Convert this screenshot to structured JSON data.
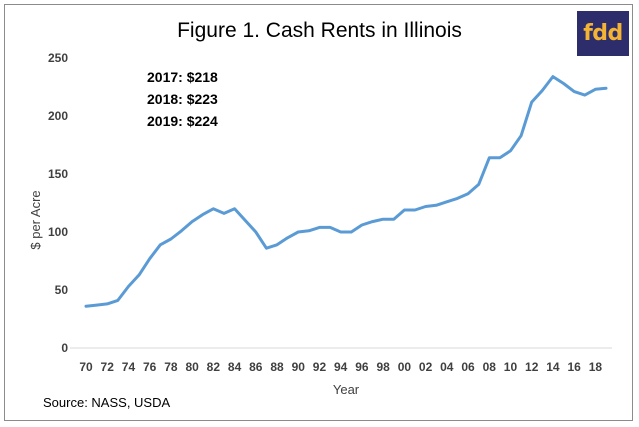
{
  "chart_data": {
    "type": "line",
    "title": "Figure 1.  Cash Rents in Illinois",
    "xlabel": "Year",
    "ylabel": "$ per Acre",
    "ylim": [
      0,
      250
    ],
    "xlim": [
      1970,
      2019
    ],
    "y_ticks": [
      0,
      50,
      100,
      150,
      200,
      250
    ],
    "x_ticks": [
      {
        "year": 1970,
        "label": "70"
      },
      {
        "year": 1972,
        "label": "72"
      },
      {
        "year": 1974,
        "label": "74"
      },
      {
        "year": 1976,
        "label": "76"
      },
      {
        "year": 1978,
        "label": "78"
      },
      {
        "year": 1980,
        "label": "80"
      },
      {
        "year": 1982,
        "label": "82"
      },
      {
        "year": 1984,
        "label": "84"
      },
      {
        "year": 1986,
        "label": "86"
      },
      {
        "year": 1988,
        "label": "88"
      },
      {
        "year": 1990,
        "label": "90"
      },
      {
        "year": 1992,
        "label": "92"
      },
      {
        "year": 1994,
        "label": "94"
      },
      {
        "year": 1996,
        "label": "96"
      },
      {
        "year": 1998,
        "label": "98"
      },
      {
        "year": 2000,
        "label": "00"
      },
      {
        "year": 2002,
        "label": "02"
      },
      {
        "year": 2004,
        "label": "04"
      },
      {
        "year": 2006,
        "label": "06"
      },
      {
        "year": 2008,
        "label": "08"
      },
      {
        "year": 2010,
        "label": "10"
      },
      {
        "year": 2012,
        "label": "12"
      },
      {
        "year": 2014,
        "label": "14"
      },
      {
        "year": 2016,
        "label": "16"
      },
      {
        "year": 2018,
        "label": "18"
      }
    ],
    "grid": false,
    "series": [
      {
        "color": "#5b9bd5",
        "x": [
          1970,
          1971,
          1972,
          1973,
          1974,
          1975,
          1976,
          1977,
          1978,
          1979,
          1980,
          1981,
          1982,
          1983,
          1984,
          1985,
          1986,
          1987,
          1988,
          1989,
          1990,
          1991,
          1992,
          1993,
          1994,
          1995,
          1996,
          1997,
          1998,
          1999,
          2000,
          2001,
          2002,
          2003,
          2004,
          2005,
          2006,
          2007,
          2008,
          2009,
          2010,
          2011,
          2012,
          2013,
          2014,
          2015,
          2016,
          2017,
          2018,
          2019
        ],
        "values": [
          36,
          37,
          38,
          41,
          53,
          63,
          77,
          89,
          94,
          101,
          109,
          115,
          120,
          116,
          120,
          110,
          100,
          86,
          89,
          95,
          100,
          101,
          104,
          104,
          100,
          100,
          106,
          109,
          111,
          111,
          119,
          119,
          122,
          123,
          126,
          129,
          133,
          141,
          164,
          164,
          170,
          183,
          212,
          222,
          234,
          228,
          221,
          218,
          223,
          224
        ]
      }
    ],
    "annotations": [
      "2017: $218",
      "2018: $223",
      "2019: $224"
    ]
  },
  "source": "Source: NASS, USDA",
  "logo_text": "fdd"
}
